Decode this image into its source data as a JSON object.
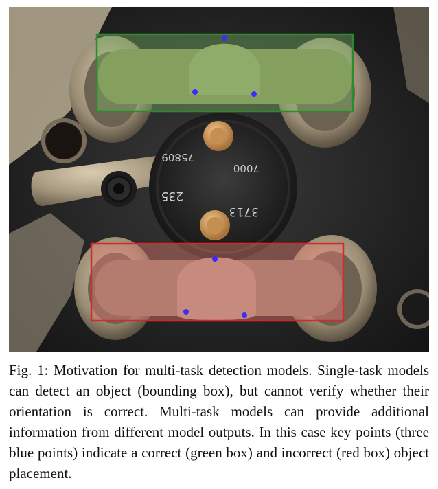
{
  "figure": {
    "image_description_label": "Photo of a fuel injector nut assembly with two T-shaped clamps",
    "boxes": [
      {
        "label": "correct",
        "color": "#2f8a2f",
        "fill": "#7fc06a"
      },
      {
        "label": "incorrect",
        "color": "#d12a2a",
        "fill": "#e07a70"
      }
    ],
    "keypoint_color": "#3b2bff",
    "markings": {
      "num_a": "75809",
      "num_b": "7000",
      "num_c": "235",
      "num_d": "3713"
    }
  },
  "caption": {
    "text": "Fig. 1: Motivation for multi-task detection models. Single-task models can detect an object (bounding box), but cannot verify whether their orientation is correct. Multi-task models can provide additional information from different model outputs. In this case key points (three blue points) indicate a correct (green box) and incorrect (red box) object placement."
  }
}
